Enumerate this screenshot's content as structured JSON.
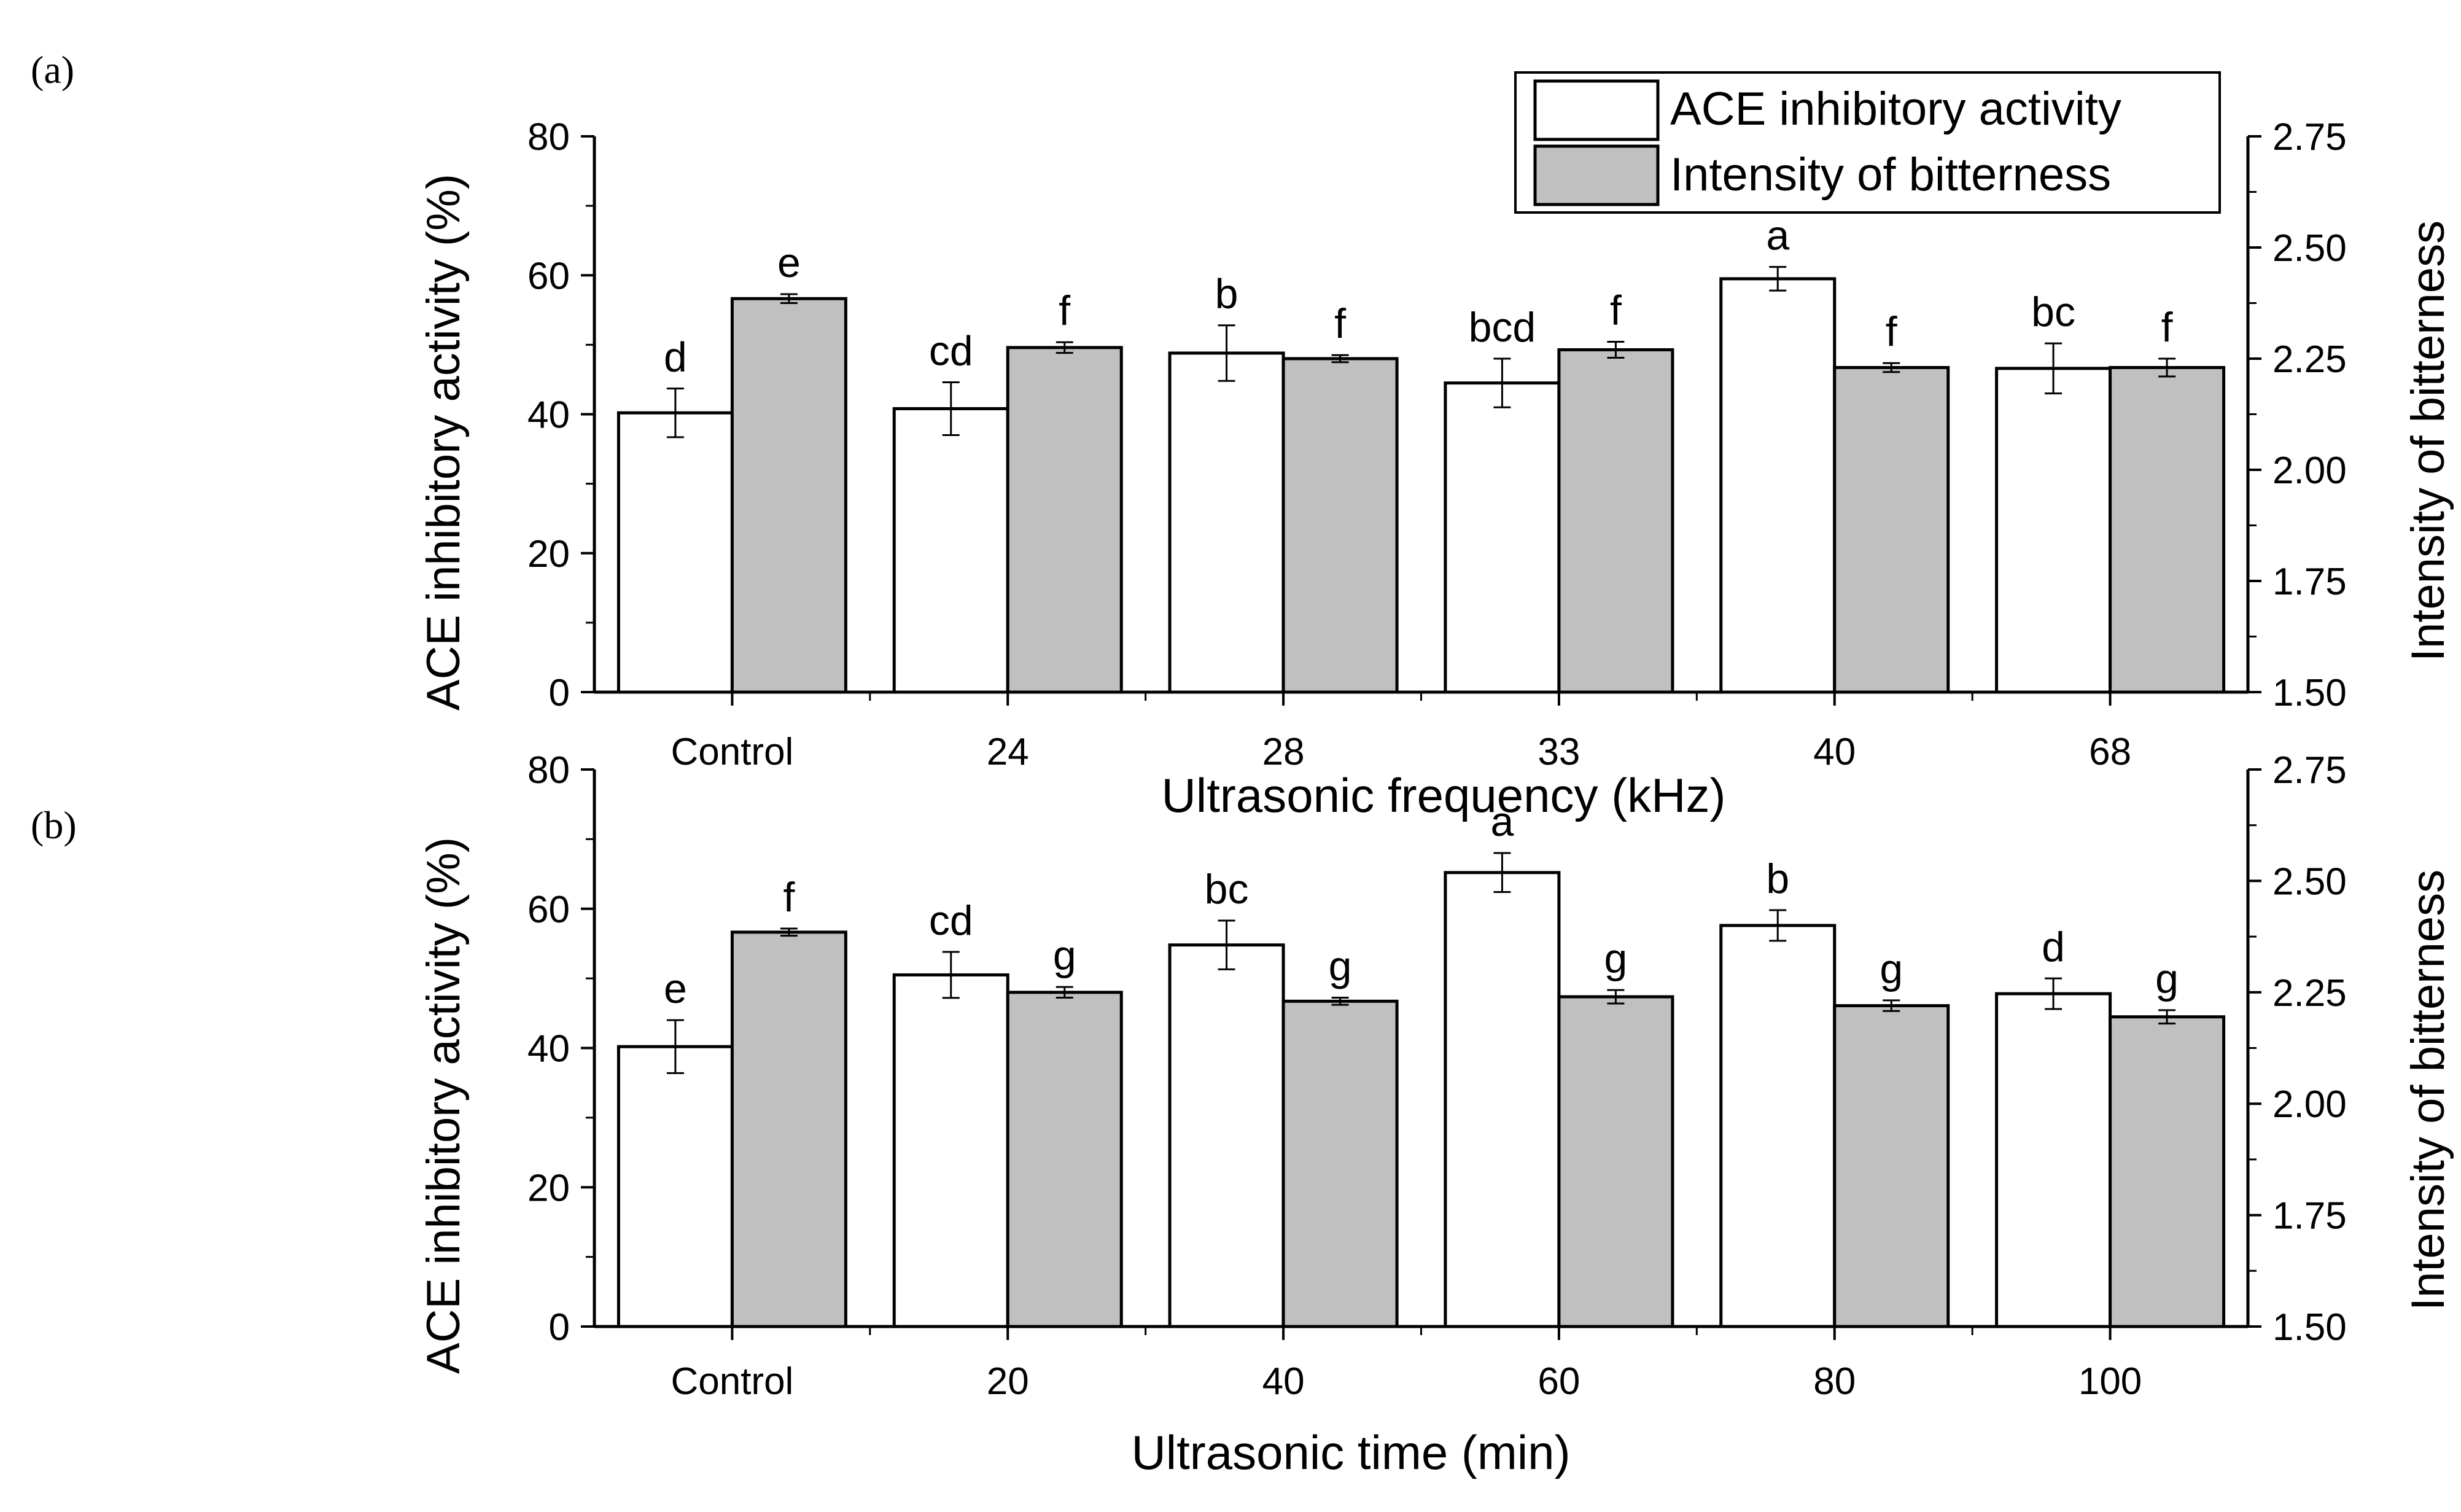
{
  "panel_labels": [
    "(a)",
    "(b)"
  ],
  "legend": {
    "ace": "ACE inhibitory activity",
    "bitterness": "Intensity of bitterness",
    "ace_color": "#ffffff",
    "bitterness_color": "#c0c0c0"
  },
  "chart_data": [
    {
      "type": "bar",
      "panel": "(a)",
      "xlabel": "Ultrasonic frequency (kHz)",
      "ylabel": "ACE inhibitory activity (%)",
      "y2label": "Intensity of bitterness",
      "categories": [
        "Control",
        "24",
        "28",
        "33",
        "40",
        "68"
      ],
      "ylim": [
        0,
        80
      ],
      "yticks": [
        0,
        20,
        40,
        60,
        80
      ],
      "y2lim": [
        1.5,
        2.75
      ],
      "y2ticks": [
        "1.50",
        "1.75",
        "2.00",
        "2.25",
        "2.50",
        "2.75"
      ],
      "series": [
        {
          "name": "ACE inhibitory activity",
          "axis": "left",
          "values": [
            40.2,
            40.8,
            48.8,
            44.5,
            59.5,
            46.6
          ],
          "errors": [
            3.5,
            3.8,
            4.0,
            3.5,
            1.7,
            3.6
          ],
          "labels": [
            "d",
            "cd",
            "b",
            "bcd",
            "a",
            "bc"
          ]
        },
        {
          "name": "Intensity of bitterness",
          "axis": "right",
          "values": [
            2.385,
            2.275,
            2.25,
            2.27,
            2.23,
            2.23
          ],
          "errors": [
            0.01,
            0.012,
            0.008,
            0.018,
            0.01,
            0.02
          ],
          "labels": [
            "e",
            "f",
            "f",
            "f",
            "f",
            "f"
          ]
        }
      ]
    },
    {
      "type": "bar",
      "panel": "(b)",
      "xlabel": "Ultrasonic time (min)",
      "ylabel": "ACE inhibitory activity (%)",
      "y2label": "Intensity of bitterness",
      "categories": [
        "Control",
        "20",
        "40",
        "60",
        "80",
        "100"
      ],
      "ylim": [
        0,
        80
      ],
      "yticks": [
        0,
        20,
        40,
        60,
        80
      ],
      "y2lim": [
        1.5,
        2.75
      ],
      "y2ticks": [
        "1.50",
        "1.75",
        "2.00",
        "2.25",
        "2.50",
        "2.75"
      ],
      "series": [
        {
          "name": "ACE inhibitory activity",
          "axis": "left",
          "values": [
            40.2,
            50.5,
            54.8,
            65.2,
            57.6,
            47.8
          ],
          "errors": [
            3.8,
            3.3,
            3.5,
            2.8,
            2.2,
            2.2
          ],
          "labels": [
            "e",
            "cd",
            "bc",
            "a",
            "b",
            "d"
          ]
        },
        {
          "name": "Intensity of bitterness",
          "axis": "right",
          "values": [
            2.385,
            2.25,
            2.23,
            2.24,
            2.22,
            2.195
          ],
          "errors": [
            0.008,
            0.012,
            0.008,
            0.015,
            0.012,
            0.015
          ],
          "labels": [
            "f",
            "g",
            "g",
            "g",
            "g",
            "g"
          ]
        }
      ]
    }
  ]
}
